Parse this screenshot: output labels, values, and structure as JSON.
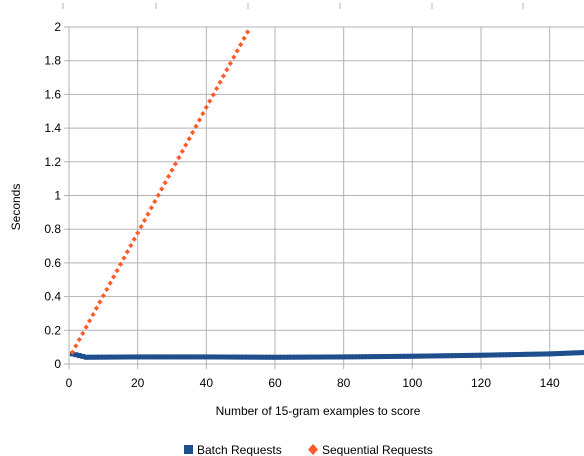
{
  "chart_data": {
    "type": "scatter",
    "title": "",
    "xlabel": "Number of 15-gram examples to score",
    "ylabel": "Seconds",
    "xlim": [
      0,
      150
    ],
    "ylim": [
      0,
      2
    ],
    "xticks": [
      "0",
      "20",
      "40",
      "60",
      "80",
      "100",
      "120",
      "140"
    ],
    "yticks": [
      "0",
      "0.2",
      "0.4",
      "0.6",
      "0.8",
      "1",
      "1.2",
      "1.4",
      "1.6",
      "1.8",
      "2"
    ],
    "grid": true,
    "legend_position": "bottom",
    "series": [
      {
        "name": "Batch Requests",
        "color": "#1f4e8c",
        "marker": "square",
        "x_start": 1,
        "x_end": 150,
        "x_step": 1,
        "values_at": [
          [
            1,
            0.06
          ],
          [
            2,
            0.055
          ],
          [
            3,
            0.05
          ],
          [
            5,
            0.04
          ],
          [
            20,
            0.042
          ],
          [
            40,
            0.042
          ],
          [
            60,
            0.04
          ],
          [
            80,
            0.042
          ],
          [
            100,
            0.046
          ],
          [
            120,
            0.052
          ],
          [
            140,
            0.06
          ],
          [
            150,
            0.068
          ]
        ]
      },
      {
        "name": "Sequential Requests",
        "color": "#ff5a2a",
        "marker": "diamond",
        "x_start": 1,
        "x_end": 52,
        "x_step": 1,
        "values_at": [
          [
            1,
            0.07
          ],
          [
            52,
            1.97
          ]
        ]
      }
    ]
  }
}
